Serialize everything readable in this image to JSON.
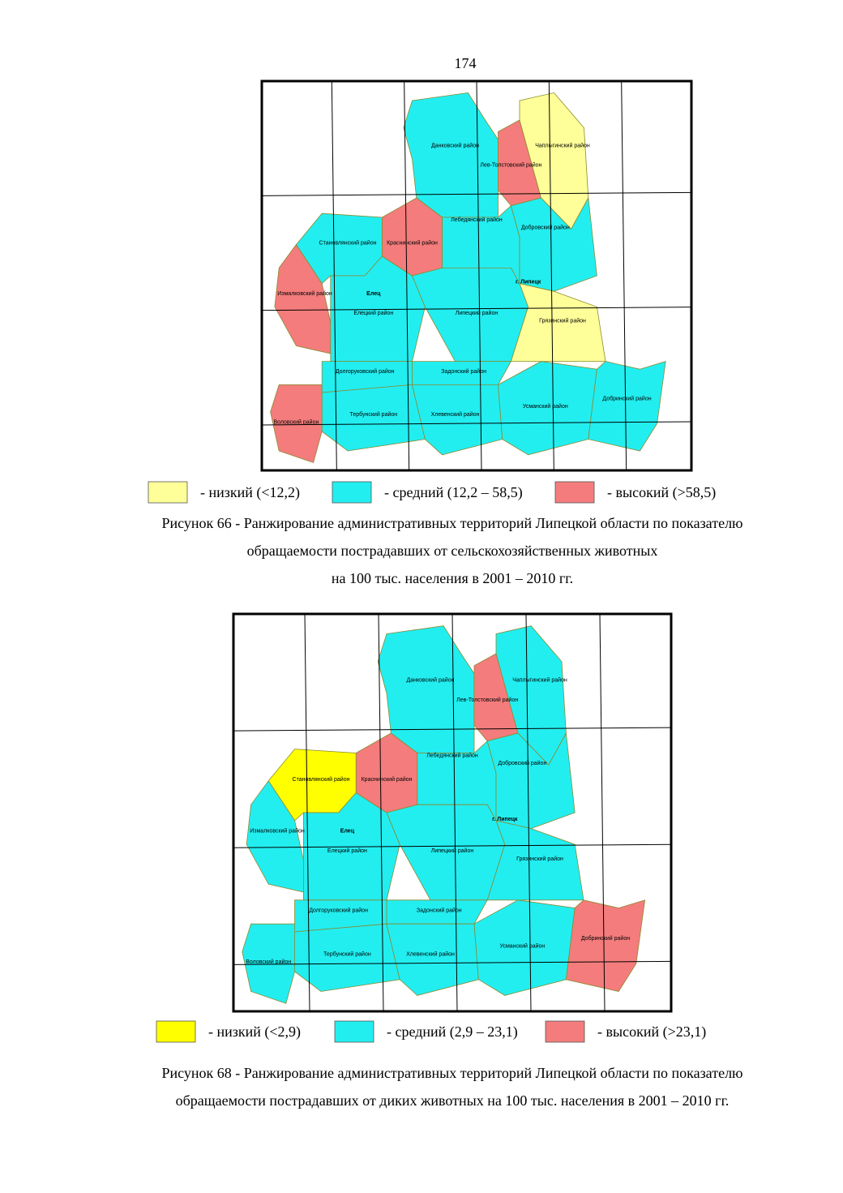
{
  "page_number": "174",
  "figures": [
    {
      "legend": [
        {
          "label": "- низкий (<12,2)",
          "color": "#ffff99"
        },
        {
          "label": "- средний (12,2 – 58,5)",
          "color": "#22eef0"
        },
        {
          "label": "- высокий (>58,5)",
          "color": "#f47c7c"
        }
      ],
      "caption": [
        "Рисунок 66 - Ранжирование административных территорий Липецкой области по показателю",
        "обращаемости пострадавших от сельскохозяйственных животных",
        "на 100 тыс. населения в 2001 – 2010 гг."
      ],
      "cities": [
        "г. Липецк",
        "Елец"
      ],
      "regions": [
        {
          "name": "Данковский район",
          "color": "#22eef0"
        },
        {
          "name": "Лев-Толстовский район",
          "color": "#f47c7c"
        },
        {
          "name": "Чаплыгинский район",
          "color": "#ffff99"
        },
        {
          "name": "Краснинский район",
          "color": "#f47c7c"
        },
        {
          "name": "Лебедянский район",
          "color": "#22eef0"
        },
        {
          "name": "Добровский район",
          "color": "#22eef0"
        },
        {
          "name": "Становлянский район",
          "color": "#22eef0"
        },
        {
          "name": "Измалковский район",
          "color": "#f47c7c"
        },
        {
          "name": "Елецкий район",
          "color": "#22eef0"
        },
        {
          "name": "Липецкий район",
          "color": "#22eef0"
        },
        {
          "name": "Грязинский район",
          "color": "#ffff99"
        },
        {
          "name": "Задонский район",
          "color": "#22eef0"
        },
        {
          "name": "Долгоруковский район",
          "color": "#22eef0"
        },
        {
          "name": "Тербунский район",
          "color": "#22eef0"
        },
        {
          "name": "Воловский район",
          "color": "#f47c7c"
        },
        {
          "name": "Хлевенский район",
          "color": "#22eef0"
        },
        {
          "name": "Усманский район",
          "color": "#22eef0"
        },
        {
          "name": "Добринский район",
          "color": "#22eef0"
        }
      ]
    },
    {
      "legend": [
        {
          "label": "- низкий (<2,9)",
          "color": "#ffff00"
        },
        {
          "label": "- средний (2,9 – 23,1)",
          "color": "#22eef0"
        },
        {
          "label": "- высокий (>23,1)",
          "color": "#f47c7c"
        }
      ],
      "caption": [
        "Рисунок 68 - Ранжирование административных территорий Липецкой области по показателю",
        "обращаемости пострадавших от диких животных на 100 тыс. населения в 2001 – 2010 гг."
      ],
      "cities": [
        "г. Липецк",
        "Елец"
      ],
      "regions": [
        {
          "name": "Данковский район",
          "color": "#22eef0"
        },
        {
          "name": "Лев-Толстовский район",
          "color": "#f47c7c"
        },
        {
          "name": "Чаплыгинский район",
          "color": "#22eef0"
        },
        {
          "name": "Краснинский район",
          "color": "#f47c7c"
        },
        {
          "name": "Лебедянский район",
          "color": "#22eef0"
        },
        {
          "name": "Добровский район",
          "color": "#22eef0"
        },
        {
          "name": "Становлянский район",
          "color": "#ffff00"
        },
        {
          "name": "Измалковский район",
          "color": "#22eef0"
        },
        {
          "name": "Елецкий район",
          "color": "#22eef0"
        },
        {
          "name": "Липецкий район",
          "color": "#22eef0"
        },
        {
          "name": "Грязинский район",
          "color": "#22eef0"
        },
        {
          "name": "Задонский район",
          "color": "#22eef0"
        },
        {
          "name": "Долгоруковский район",
          "color": "#22eef0"
        },
        {
          "name": "Тербунский район",
          "color": "#22eef0"
        },
        {
          "name": "Воловский район",
          "color": "#22eef0"
        },
        {
          "name": "Хлевенский район",
          "color": "#22eef0"
        },
        {
          "name": "Усманский район",
          "color": "#22eef0"
        },
        {
          "name": "Добринский район",
          "color": "#f47c7c"
        }
      ]
    }
  ]
}
